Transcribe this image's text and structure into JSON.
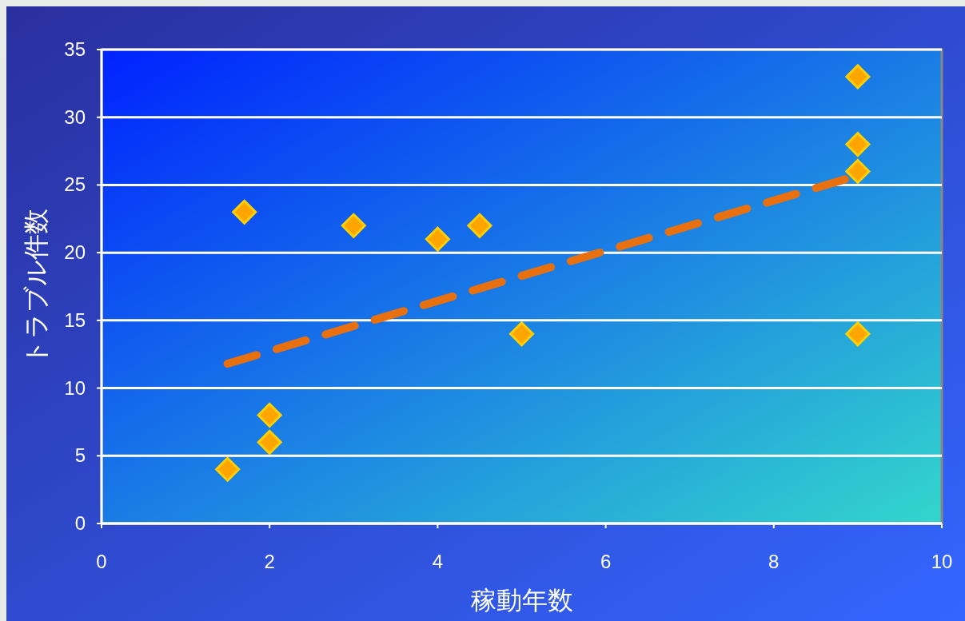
{
  "chart_data": {
    "type": "scatter",
    "xlabel": "稼動年数",
    "ylabel": "トラブル件数",
    "xlim": [
      0,
      10
    ],
    "ylim": [
      0,
      35
    ],
    "xticks": [
      0,
      2,
      4,
      6,
      8,
      10
    ],
    "yticks": [
      0,
      5,
      10,
      15,
      20,
      25,
      30,
      35
    ],
    "grid": "y",
    "series": [
      {
        "color": "#ffa500",
        "marker": "diamond",
        "x": [
          1.5,
          1.7,
          2,
          2,
          3,
          4,
          4.5,
          5,
          9,
          9,
          9,
          9
        ],
        "values": [
          4,
          23,
          8,
          6,
          22,
          21,
          22,
          14,
          33,
          28,
          26,
          14
        ]
      },
      {
        "type": "line",
        "color": "#e8700f",
        "marker": "none",
        "line_style": "dashed",
        "x": [
          1.5,
          9
        ],
        "values": [
          11.8,
          25.7
        ]
      }
    ]
  }
}
